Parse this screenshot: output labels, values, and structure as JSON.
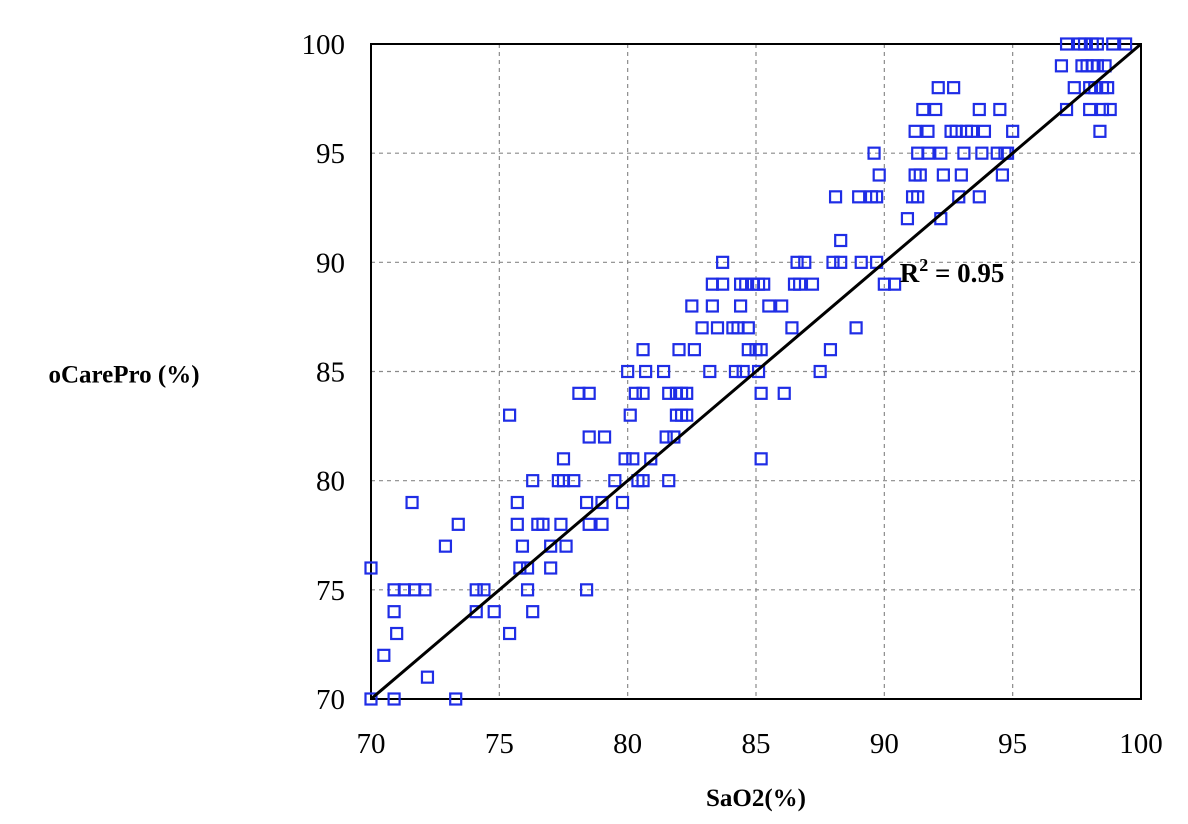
{
  "chart_data": {
    "type": "scatter",
    "xlabel": "SaO2(%)",
    "ylabel": "oCarePro (%)",
    "xlim": [
      70,
      100
    ],
    "ylim": [
      70,
      100
    ],
    "xticks": [
      70,
      75,
      80,
      85,
      90,
      95,
      100
    ],
    "yticks": [
      70,
      75,
      80,
      85,
      90,
      95,
      100
    ],
    "grid": true,
    "marker": "hollow-square",
    "marker_color": "#1f2de6",
    "line_color": "#000000",
    "annotation": {
      "base": "R",
      "sup": "2",
      "rest": " = 0.95"
    },
    "fit_line": {
      "x": [
        70,
        100
      ],
      "y": [
        70,
        100
      ]
    },
    "points": [
      [
        70.0,
        76
      ],
      [
        70.0,
        70
      ],
      [
        70.5,
        72
      ],
      [
        70.9,
        75
      ],
      [
        70.9,
        74
      ],
      [
        71.0,
        73
      ],
      [
        70.9,
        70
      ],
      [
        71.3,
        75
      ],
      [
        71.7,
        75
      ],
      [
        72.1,
        75
      ],
      [
        71.6,
        79
      ],
      [
        72.2,
        71
      ],
      [
        72.9,
        77
      ],
      [
        73.4,
        78
      ],
      [
        73.3,
        70
      ],
      [
        74.1,
        75
      ],
      [
        74.4,
        75
      ],
      [
        74.1,
        74
      ],
      [
        74.8,
        74
      ],
      [
        75.4,
        83
      ],
      [
        75.4,
        73
      ],
      [
        75.7,
        79
      ],
      [
        75.7,
        78
      ],
      [
        75.8,
        76
      ],
      [
        75.9,
        77
      ],
      [
        76.1,
        76
      ],
      [
        76.1,
        75
      ],
      [
        76.3,
        80
      ],
      [
        76.3,
        74
      ],
      [
        76.5,
        78
      ],
      [
        76.7,
        78
      ],
      [
        77.0,
        77
      ],
      [
        77.0,
        76
      ],
      [
        77.3,
        80
      ],
      [
        77.4,
        78
      ],
      [
        77.5,
        81
      ],
      [
        77.5,
        80
      ],
      [
        77.6,
        77
      ],
      [
        77.9,
        80
      ],
      [
        78.1,
        84
      ],
      [
        78.4,
        79
      ],
      [
        78.5,
        84
      ],
      [
        78.5,
        82
      ],
      [
        78.5,
        78
      ],
      [
        78.4,
        75
      ],
      [
        79.0,
        78
      ],
      [
        79.0,
        79
      ],
      [
        79.1,
        82
      ],
      [
        79.5,
        80
      ],
      [
        79.8,
        79
      ],
      [
        79.9,
        81
      ],
      [
        80.0,
        85
      ],
      [
        80.1,
        83
      ],
      [
        80.2,
        81
      ],
      [
        80.3,
        84
      ],
      [
        80.4,
        80
      ],
      [
        80.6,
        84
      ],
      [
        80.6,
        86
      ],
      [
        80.6,
        80
      ],
      [
        80.7,
        85
      ],
      [
        80.9,
        81
      ],
      [
        81.4,
        85
      ],
      [
        81.5,
        82
      ],
      [
        81.6,
        84
      ],
      [
        81.6,
        80
      ],
      [
        81.8,
        82
      ],
      [
        81.9,
        84
      ],
      [
        81.9,
        83
      ],
      [
        82.0,
        86
      ],
      [
        82.1,
        84
      ],
      [
        82.1,
        83
      ],
      [
        82.3,
        84
      ],
      [
        82.3,
        83
      ],
      [
        82.5,
        88
      ],
      [
        82.6,
        86
      ],
      [
        82.9,
        87
      ],
      [
        83.2,
        85
      ],
      [
        83.3,
        88
      ],
      [
        83.3,
        89
      ],
      [
        83.5,
        87
      ],
      [
        83.7,
        90
      ],
      [
        83.7,
        89
      ],
      [
        84.1,
        87
      ],
      [
        84.2,
        85
      ],
      [
        84.3,
        87
      ],
      [
        84.4,
        89
      ],
      [
        84.4,
        88
      ],
      [
        84.5,
        85
      ],
      [
        84.6,
        89
      ],
      [
        84.7,
        86
      ],
      [
        84.7,
        87
      ],
      [
        84.9,
        89
      ],
      [
        85.0,
        86
      ],
      [
        85.1,
        89
      ],
      [
        85.1,
        85
      ],
      [
        85.2,
        84
      ],
      [
        85.2,
        81
      ],
      [
        85.2,
        86
      ],
      [
        85.3,
        89
      ],
      [
        85.5,
        88
      ],
      [
        86.0,
        88
      ],
      [
        86.1,
        84
      ],
      [
        86.4,
        87
      ],
      [
        86.5,
        89
      ],
      [
        86.6,
        90
      ],
      [
        86.7,
        89
      ],
      [
        86.9,
        90
      ],
      [
        87.2,
        89
      ],
      [
        87.5,
        85
      ],
      [
        87.9,
        86
      ],
      [
        88.0,
        90
      ],
      [
        88.1,
        93
      ],
      [
        88.3,
        90
      ],
      [
        88.3,
        91
      ],
      [
        88.9,
        87
      ],
      [
        89.0,
        93
      ],
      [
        89.1,
        90
      ],
      [
        89.5,
        93
      ],
      [
        89.6,
        95
      ],
      [
        89.7,
        93
      ],
      [
        89.7,
        90
      ],
      [
        89.8,
        94
      ],
      [
        90.0,
        89
      ],
      [
        90.4,
        89
      ],
      [
        90.9,
        92
      ],
      [
        91.1,
        93
      ],
      [
        91.2,
        94
      ],
      [
        91.3,
        95
      ],
      [
        91.3,
        93
      ],
      [
        91.2,
        96
      ],
      [
        91.4,
        94
      ],
      [
        91.5,
        97
      ],
      [
        91.7,
        96
      ],
      [
        91.7,
        95
      ],
      [
        92.0,
        97
      ],
      [
        92.1,
        98
      ],
      [
        92.2,
        95
      ],
      [
        92.2,
        92
      ],
      [
        92.3,
        94
      ],
      [
        92.6,
        96
      ],
      [
        92.7,
        98
      ],
      [
        92.8,
        96
      ],
      [
        92.9,
        93
      ],
      [
        93.0,
        94
      ],
      [
        93.1,
        95
      ],
      [
        93.2,
        96
      ],
      [
        93.4,
        96
      ],
      [
        93.7,
        93
      ],
      [
        93.7,
        97
      ],
      [
        93.8,
        95
      ],
      [
        93.9,
        96
      ],
      [
        94.4,
        95
      ],
      [
        94.5,
        97
      ],
      [
        94.6,
        94
      ],
      [
        94.7,
        95
      ],
      [
        94.8,
        95
      ],
      [
        95.0,
        96
      ],
      [
        96.9,
        99
      ],
      [
        97.1,
        97
      ],
      [
        97.1,
        100
      ],
      [
        97.4,
        98
      ],
      [
        97.6,
        100
      ],
      [
        97.7,
        99
      ],
      [
        97.8,
        100
      ],
      [
        97.9,
        99
      ],
      [
        98.0,
        97
      ],
      [
        98.0,
        98
      ],
      [
        98.1,
        100
      ],
      [
        98.1,
        99
      ],
      [
        98.2,
        98
      ],
      [
        98.3,
        100
      ],
      [
        98.3,
        99
      ],
      [
        98.4,
        96
      ],
      [
        98.5,
        97
      ],
      [
        98.5,
        98
      ],
      [
        98.6,
        99
      ],
      [
        98.7,
        98
      ],
      [
        98.8,
        97
      ],
      [
        98.9,
        100
      ],
      [
        99.4,
        100
      ]
    ]
  }
}
